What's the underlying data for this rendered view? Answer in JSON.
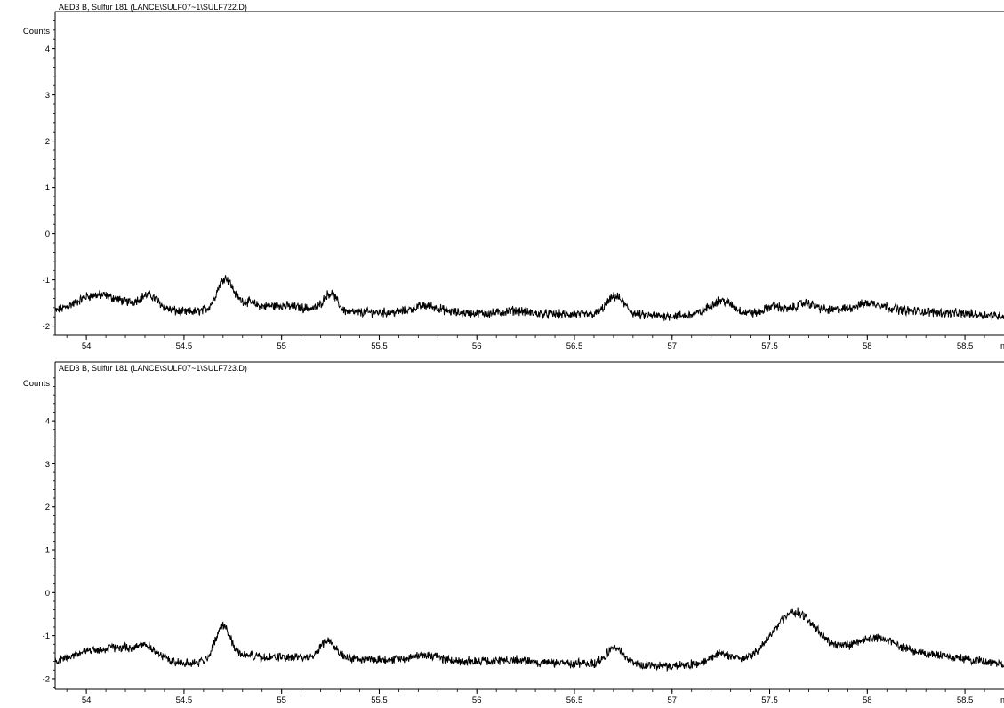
{
  "chart_data": [
    {
      "type": "line",
      "title": "AED3 B, Sulfur 181 (LANCE\\SULF07~1\\SULF722.D)",
      "ylabel": "Counts",
      "xlabel": "",
      "x_unit_clipped": "m",
      "xlim": [
        53.84,
        58.7
      ],
      "ylim": [
        -2.2,
        4.8
      ],
      "x_ticks": [
        "54",
        "54.5",
        "55",
        "55.5",
        "56",
        "56.5",
        "57",
        "57.5",
        "58",
        "58.5"
      ],
      "y_ticks": [
        "4",
        "3",
        "2",
        "1",
        "0",
        "-1",
        "-2"
      ],
      "baseline": [
        [
          53.84,
          -1.68
        ],
        [
          54.0,
          -1.42
        ],
        [
          54.2,
          -1.5
        ],
        [
          54.5,
          -1.7
        ],
        [
          55.0,
          -1.55
        ],
        [
          55.3,
          -1.7
        ],
        [
          56.0,
          -1.72
        ],
        [
          57.0,
          -1.78
        ],
        [
          57.5,
          -1.72
        ],
        [
          58.0,
          -1.62
        ],
        [
          58.7,
          -1.78
        ]
      ],
      "peaks": [
        {
          "x": 54.08,
          "height": 0.12,
          "width": 0.07
        },
        {
          "x": 54.32,
          "height": 0.25,
          "width": 0.045
        },
        {
          "x": 54.71,
          "height": 0.68,
          "width": 0.04
        },
        {
          "x": 54.82,
          "height": 0.12,
          "width": 0.04
        },
        {
          "x": 55.25,
          "height": 0.38,
          "width": 0.035
        },
        {
          "x": 55.74,
          "height": 0.15,
          "width": 0.07
        },
        {
          "x": 56.2,
          "height": 0.07,
          "width": 0.05
        },
        {
          "x": 56.71,
          "height": 0.4,
          "width": 0.045
        },
        {
          "x": 57.25,
          "height": 0.3,
          "width": 0.06
        },
        {
          "x": 57.52,
          "height": 0.15,
          "width": 0.04
        },
        {
          "x": 57.68,
          "height": 0.18,
          "width": 0.05
        },
        {
          "x": 58.02,
          "height": 0.12,
          "width": 0.07
        }
      ],
      "noise": 0.08,
      "color": "#000000"
    },
    {
      "type": "line",
      "title": "AED3 B, Sulfur 181 (LANCE\\SULF07~1\\SULF723.D)",
      "ylabel": "Counts",
      "xlabel": "",
      "x_unit_clipped": "m",
      "xlim": [
        53.84,
        58.7
      ],
      "ylim": [
        -2.25,
        5.1
      ],
      "x_ticks": [
        "54",
        "54.5",
        "55",
        "55.5",
        "56",
        "56.5",
        "57",
        "57.5",
        "58",
        "58.5"
      ],
      "y_ticks": [
        "4",
        "3",
        "2",
        "1",
        "0",
        "-1",
        "-2"
      ],
      "baseline": [
        [
          53.84,
          -1.6
        ],
        [
          54.0,
          -1.35
        ],
        [
          54.3,
          -1.4
        ],
        [
          54.5,
          -1.65
        ],
        [
          55.0,
          -1.5
        ],
        [
          55.5,
          -1.55
        ],
        [
          56.0,
          -1.6
        ],
        [
          57.0,
          -1.7
        ],
        [
          57.5,
          -1.6
        ],
        [
          58.0,
          -1.25
        ],
        [
          58.7,
          -1.65
        ]
      ],
      "peaks": [
        {
          "x": 54.16,
          "height": 0.1,
          "width": 0.06
        },
        {
          "x": 54.3,
          "height": 0.2,
          "width": 0.045
        },
        {
          "x": 54.7,
          "height": 0.82,
          "width": 0.04
        },
        {
          "x": 54.82,
          "height": 0.1,
          "width": 0.04
        },
        {
          "x": 55.24,
          "height": 0.42,
          "width": 0.04
        },
        {
          "x": 55.74,
          "height": 0.12,
          "width": 0.07
        },
        {
          "x": 56.2,
          "height": 0.06,
          "width": 0.05
        },
        {
          "x": 56.71,
          "height": 0.38,
          "width": 0.045
        },
        {
          "x": 57.25,
          "height": 0.22,
          "width": 0.06
        },
        {
          "x": 57.62,
          "height": 1.05,
          "width": 0.11
        },
        {
          "x": 58.06,
          "height": 0.22,
          "width": 0.09
        }
      ],
      "noise": 0.08,
      "color": "#000000"
    }
  ]
}
